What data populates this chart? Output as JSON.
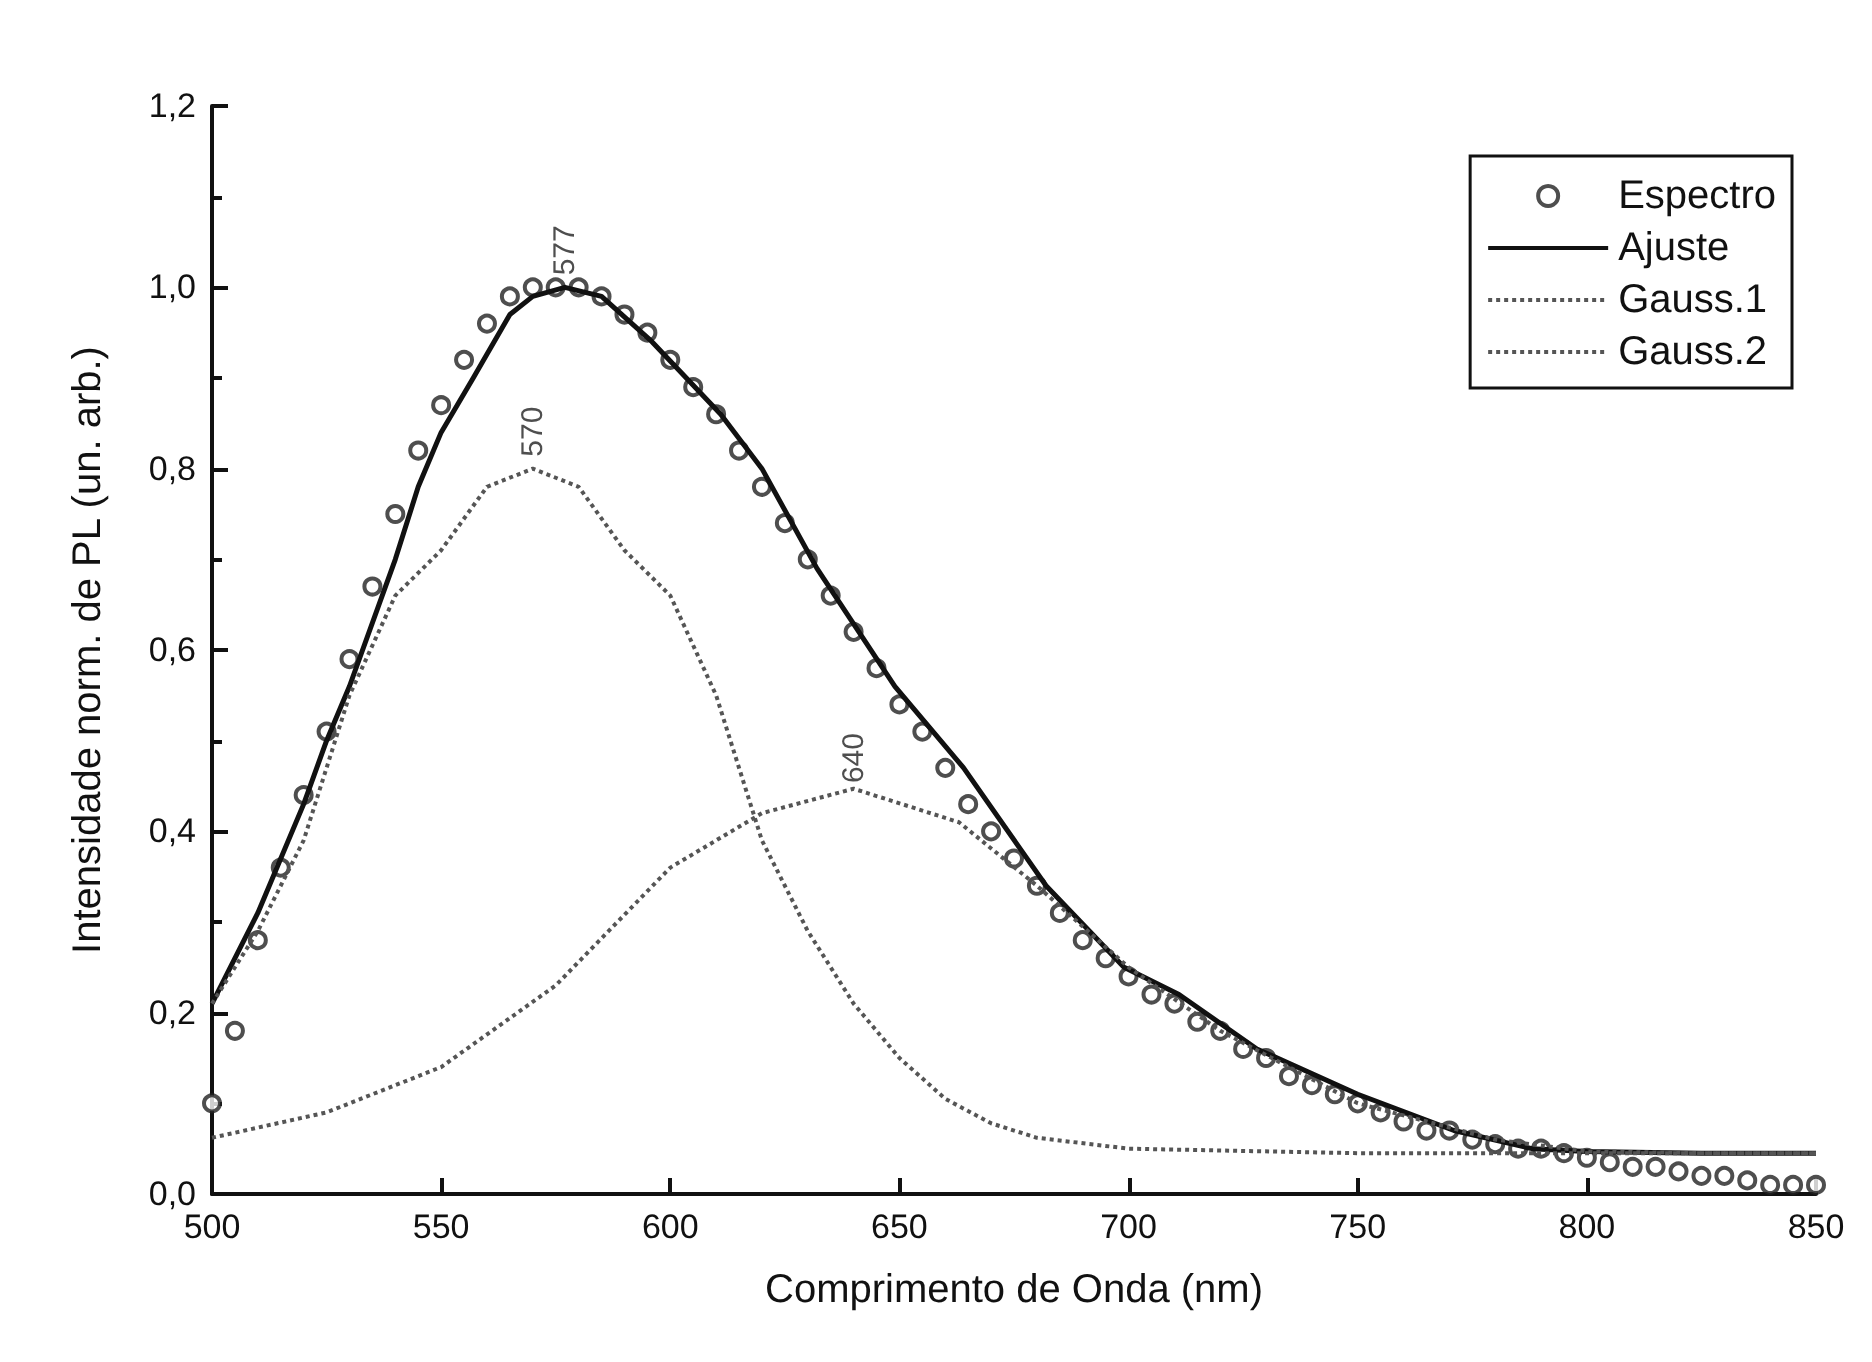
{
  "chart_data": {
    "type": "line",
    "xlabel": "Comprimento de Onda (nm)",
    "ylabel": "Intensidade norm. de PL (un. arb.)",
    "xlim": [
      500,
      850
    ],
    "xticks": [
      500,
      550,
      600,
      650,
      700,
      750,
      800,
      850
    ],
    "ylim": [
      0,
      1.2
    ],
    "yticks": [
      {
        "value": 0,
        "label": "0,0"
      },
      {
        "value": 0.2,
        "label": "0,2"
      },
      {
        "value": 0.4,
        "label": "0,4"
      },
      {
        "value": 0.6,
        "label": "0,6"
      },
      {
        "value": 0.8,
        "label": "0,8"
      },
      {
        "value": 1.0,
        "label": "1,0"
      },
      {
        "value": 1.2,
        "label": "1,2"
      }
    ],
    "grid": false,
    "legend": "top right",
    "annotations": [
      {
        "text": "577",
        "x": 577,
        "y": 1.0
      },
      {
        "text": "570",
        "x": 570,
        "y": 0.8
      },
      {
        "text": "640",
        "x": 640,
        "y": 0.44
      }
    ],
    "series": [
      {
        "name": "Espectro",
        "type": "scatter",
        "marker": "circle",
        "color": "#222222",
        "x": [
          500,
          505,
          510,
          515,
          520,
          525,
          530,
          535,
          540,
          545,
          550,
          555,
          560,
          565,
          570,
          575,
          580,
          585,
          590,
          595,
          600,
          605,
          610,
          615,
          620,
          625,
          630,
          635,
          640,
          645,
          650,
          655,
          660,
          665,
          670,
          675,
          680,
          685,
          690,
          695,
          700,
          705,
          710,
          715,
          720,
          725,
          730,
          735,
          740,
          745,
          750,
          755,
          760,
          765,
          770,
          775,
          780,
          785,
          790,
          795,
          800,
          805,
          810,
          815,
          820,
          825,
          830,
          835,
          840,
          845,
          850
        ],
        "values": [
          0.1,
          0.18,
          0.28,
          0.36,
          0.44,
          0.51,
          0.59,
          0.67,
          0.75,
          0.82,
          0.87,
          0.92,
          0.96,
          0.99,
          1.0,
          1.0,
          1.0,
          0.99,
          0.97,
          0.95,
          0.92,
          0.89,
          0.86,
          0.82,
          0.78,
          0.74,
          0.7,
          0.66,
          0.62,
          0.58,
          0.54,
          0.51,
          0.47,
          0.43,
          0.4,
          0.37,
          0.34,
          0.31,
          0.28,
          0.26,
          0.24,
          0.22,
          0.21,
          0.19,
          0.18,
          0.16,
          0.15,
          0.13,
          0.12,
          0.11,
          0.1,
          0.09,
          0.08,
          0.07,
          0.07,
          0.06,
          0.055,
          0.05,
          0.05,
          0.045,
          0.04,
          0.035,
          0.03,
          0.03,
          0.025,
          0.02,
          0.02,
          0.015,
          0.01,
          0.01,
          0.01
        ]
      },
      {
        "name": "Ajuste",
        "line_style": "solid",
        "color": "#111111",
        "x": [
          500,
          510,
          520,
          525,
          530,
          540,
          545,
          550,
          557,
          565,
          570,
          577,
          585,
          596,
          611,
          620,
          632,
          649,
          664,
          682,
          699,
          711,
          728,
          750,
          771,
          788,
          800,
          825,
          850
        ],
        "values": [
          0.21,
          0.31,
          0.43,
          0.5,
          0.56,
          0.7,
          0.78,
          0.84,
          0.9,
          0.97,
          0.99,
          1.0,
          0.99,
          0.94,
          0.86,
          0.8,
          0.69,
          0.56,
          0.47,
          0.34,
          0.25,
          0.22,
          0.16,
          0.11,
          0.07,
          0.05,
          0.047,
          0.045,
          0.045
        ]
      },
      {
        "name": "Gauss.1",
        "line_style": "dotted",
        "color": "#555555",
        "x": [
          500,
          510,
          520,
          530,
          540,
          550,
          560,
          570,
          580,
          590,
          600,
          610,
          620,
          630,
          640,
          650,
          660,
          670,
          680,
          700,
          750,
          800,
          850
        ],
        "values": [
          0.21,
          0.29,
          0.39,
          0.55,
          0.66,
          0.71,
          0.78,
          0.8,
          0.78,
          0.71,
          0.66,
          0.55,
          0.39,
          0.29,
          0.21,
          0.15,
          0.105,
          0.078,
          0.062,
          0.05,
          0.045,
          0.045,
          0.045
        ]
      },
      {
        "name": "Gauss.2",
        "line_style": "dotted",
        "color": "#555555",
        "x": [
          500,
          525,
          550,
          575,
          600,
          620,
          640,
          663,
          680,
          700,
          720,
          750,
          780,
          800,
          825,
          850
        ],
        "values": [
          0.062,
          0.09,
          0.14,
          0.23,
          0.36,
          0.42,
          0.447,
          0.41,
          0.34,
          0.25,
          0.18,
          0.1,
          0.06,
          0.047,
          0.045,
          0.045
        ]
      }
    ]
  }
}
